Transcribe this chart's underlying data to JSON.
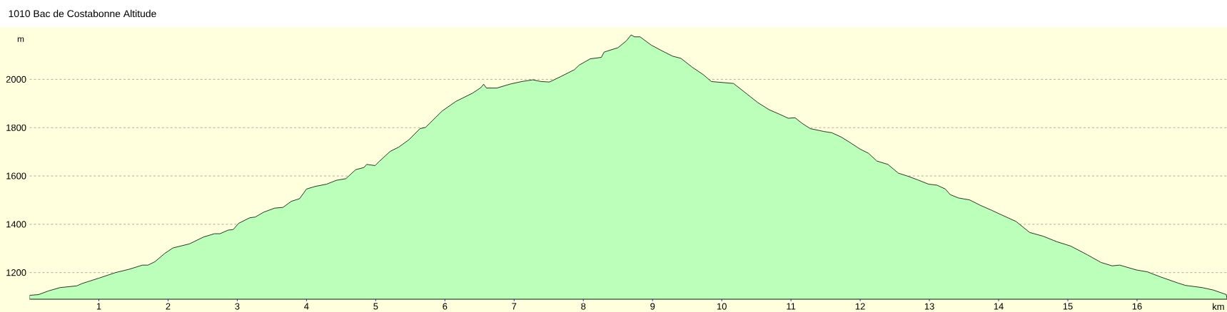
{
  "chart_data": {
    "type": "area",
    "title": "1010 Bac de Costabonne Altitude",
    "xlabel": "km",
    "ylabel": "m",
    "color": "#bbffbb",
    "grid": "y",
    "xlim": [
      0,
      17.3
    ],
    "ylim": [
      1090,
      2215
    ],
    "xticks": [
      1,
      2,
      3,
      4,
      5,
      6,
      7,
      8,
      9,
      10,
      11,
      12,
      13,
      14,
      15,
      16
    ],
    "yticks": [
      1200,
      1400,
      1600,
      1800,
      2000
    ],
    "x": [
      0,
      0.13,
      0.27,
      0.44,
      0.68,
      0.76,
      1.0,
      1.24,
      1.44,
      1.63,
      1.71,
      1.81,
      1.95,
      2.07,
      2.31,
      2.51,
      2.67,
      2.75,
      2.87,
      2.94,
      3.02,
      3.18,
      3.26,
      3.38,
      3.54,
      3.66,
      3.78,
      3.9,
      4.0,
      4.13,
      4.29,
      4.43,
      4.57,
      4.71,
      4.83,
      4.87,
      4.99,
      5.05,
      5.21,
      5.33,
      5.48,
      5.64,
      5.72,
      5.96,
      6.16,
      6.4,
      6.52,
      6.56,
      6.6,
      6.75,
      6.95,
      7.11,
      7.27,
      7.39,
      7.51,
      7.67,
      7.87,
      7.94,
      8.1,
      8.26,
      8.3,
      8.5,
      8.62,
      8.69,
      8.74,
      8.82,
      8.98,
      9.13,
      9.29,
      9.41,
      9.57,
      9.73,
      9.85,
      10.05,
      10.17,
      10.37,
      10.52,
      10.68,
      10.84,
      10.96,
      11.06,
      11.16,
      11.28,
      11.48,
      11.59,
      11.72,
      11.84,
      12.0,
      12.12,
      12.24,
      12.4,
      12.55,
      12.71,
      12.83,
      12.99,
      13.11,
      13.23,
      13.3,
      13.42,
      13.58,
      13.74,
      13.9,
      14.05,
      14.25,
      14.45,
      14.64,
      14.84,
      15.04,
      15.28,
      15.48,
      15.64,
      15.75,
      15.99,
      16.15,
      16.35,
      16.59,
      16.7,
      16.94,
      17.1,
      17.29,
      17.3
    ],
    "values": [
      1106,
      1109,
      1124,
      1138,
      1145,
      1155,
      1177,
      1200,
      1214,
      1231,
      1231,
      1245,
      1279,
      1302,
      1319,
      1347,
      1361,
      1361,
      1376,
      1378,
      1404,
      1427,
      1430,
      1450,
      1467,
      1470,
      1495,
      1506,
      1546,
      1557,
      1566,
      1582,
      1589,
      1626,
      1635,
      1648,
      1643,
      1660,
      1702,
      1719,
      1750,
      1796,
      1801,
      1869,
      1909,
      1943,
      1966,
      1980,
      1964,
      1964,
      1981,
      1991,
      1998,
      1991,
      1989,
      2011,
      2040,
      2059,
      2085,
      2091,
      2113,
      2131,
      2159,
      2184,
      2176,
      2176,
      2142,
      2119,
      2096,
      2087,
      2051,
      2020,
      1991,
      1986,
      1983,
      1938,
      1904,
      1875,
      1855,
      1839,
      1841,
      1818,
      1796,
      1784,
      1779,
      1762,
      1741,
      1711,
      1694,
      1662,
      1648,
      1612,
      1597,
      1584,
      1566,
      1562,
      1546,
      1523,
      1509,
      1501,
      1478,
      1458,
      1438,
      1412,
      1366,
      1351,
      1328,
      1310,
      1274,
      1242,
      1228,
      1231,
      1211,
      1203,
      1181,
      1157,
      1147,
      1138,
      1128,
      1109,
      1090
    ]
  }
}
